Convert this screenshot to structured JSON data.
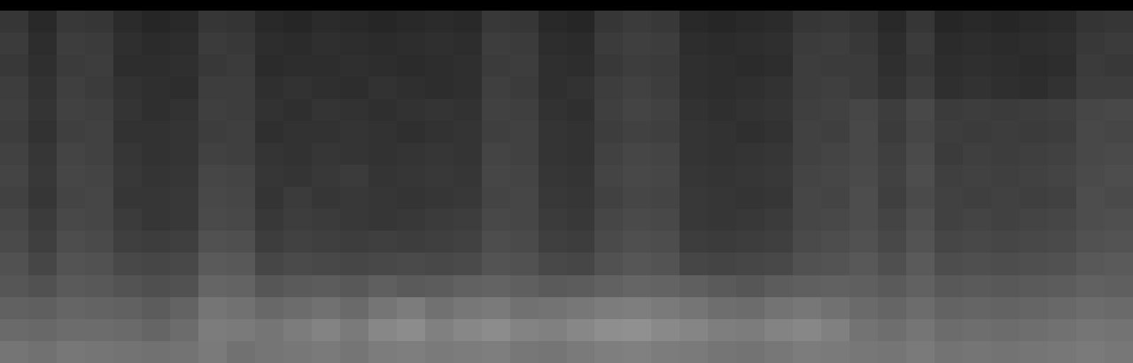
{
  "chart_data": {
    "type": "heatmap",
    "tick_labels": false,
    "cells": [
      [
        24,
        18,
        25,
        24,
        19,
        17,
        18,
        24,
        23,
        18,
        17,
        19,
        18,
        17,
        18,
        19,
        18,
        25,
        24,
        18,
        17,
        24,
        26,
        25,
        18,
        17,
        18,
        19,
        24,
        25,
        23,
        18,
        24,
        17,
        18,
        17,
        18,
        19,
        23,
        24
      ],
      [
        26,
        20,
        27,
        26,
        21,
        19,
        20,
        26,
        25,
        20,
        19,
        21,
        20,
        19,
        20,
        21,
        20,
        27,
        26,
        20,
        19,
        26,
        28,
        27,
        20,
        19,
        20,
        21,
        26,
        27,
        25,
        20,
        26,
        19,
        20,
        19,
        20,
        21,
        25,
        26
      ],
      [
        25,
        21,
        26,
        27,
        20,
        20,
        21,
        25,
        26,
        19,
        20,
        20,
        21,
        20,
        19,
        20,
        21,
        26,
        27,
        21,
        20,
        25,
        27,
        26,
        21,
        20,
        19,
        20,
        27,
        26,
        26,
        21,
        25,
        20,
        21,
        20,
        19,
        20,
        26,
        25
      ],
      [
        27,
        22,
        28,
        26,
        22,
        21,
        20,
        27,
        27,
        21,
        22,
        21,
        20,
        22,
        21,
        20,
        21,
        28,
        26,
        21,
        22,
        27,
        29,
        27,
        21,
        20,
        21,
        22,
        27,
        28,
        26,
        22,
        27,
        21,
        22,
        21,
        20,
        22,
        27,
        27
      ],
      [
        28,
        23,
        29,
        28,
        23,
        21,
        22,
        28,
        27,
        22,
        21,
        23,
        22,
        21,
        22,
        23,
        22,
        29,
        28,
        22,
        21,
        28,
        30,
        29,
        22,
        21,
        22,
        23,
        28,
        29,
        31,
        27,
        32,
        26,
        27,
        26,
        27,
        28,
        31,
        32
      ],
      [
        27,
        22,
        28,
        29,
        22,
        22,
        23,
        27,
        28,
        21,
        22,
        22,
        23,
        22,
        21,
        22,
        23,
        28,
        29,
        23,
        22,
        27,
        29,
        28,
        23,
        22,
        21,
        22,
        29,
        28,
        32,
        26,
        31,
        27,
        26,
        27,
        26,
        27,
        32,
        31
      ],
      [
        29,
        24,
        30,
        29,
        24,
        22,
        23,
        29,
        28,
        23,
        22,
        24,
        23,
        22,
        23,
        24,
        23,
        30,
        29,
        23,
        22,
        29,
        31,
        30,
        23,
        22,
        23,
        24,
        29,
        30,
        32,
        28,
        33,
        26,
        28,
        27,
        28,
        29,
        32,
        33
      ],
      [
        30,
        25,
        31,
        30,
        25,
        23,
        24,
        31,
        30,
        24,
        23,
        25,
        26,
        23,
        24,
        25,
        24,
        31,
        30,
        24,
        23,
        30,
        32,
        31,
        24,
        23,
        24,
        25,
        30,
        31,
        33,
        29,
        34,
        28,
        29,
        28,
        29,
        30,
        33,
        34
      ],
      [
        29,
        24,
        30,
        31,
        24,
        24,
        25,
        32,
        31,
        23,
        26,
        24,
        25,
        24,
        23,
        24,
        25,
        30,
        31,
        25,
        24,
        29,
        31,
        30,
        25,
        24,
        23,
        24,
        31,
        30,
        34,
        28,
        33,
        29,
        28,
        29,
        28,
        29,
        34,
        33
      ],
      [
        31,
        26,
        32,
        31,
        26,
        24,
        25,
        33,
        32,
        25,
        27,
        26,
        25,
        24,
        25,
        26,
        27,
        32,
        31,
        26,
        25,
        31,
        33,
        32,
        25,
        24,
        25,
        26,
        31,
        32,
        34,
        30,
        35,
        29,
        30,
        29,
        30,
        31,
        34,
        35
      ],
      [
        33,
        28,
        34,
        33,
        28,
        27,
        28,
        36,
        35,
        27,
        29,
        28,
        27,
        28,
        27,
        28,
        29,
        34,
        33,
        28,
        27,
        33,
        35,
        34,
        27,
        26,
        27,
        28,
        33,
        34,
        36,
        32,
        37,
        31,
        32,
        31,
        32,
        33,
        36,
        37
      ],
      [
        36,
        31,
        37,
        36,
        32,
        31,
        32,
        40,
        39,
        31,
        33,
        32,
        31,
        32,
        33,
        32,
        33,
        37,
        36,
        32,
        31,
        36,
        38,
        37,
        31,
        30,
        31,
        32,
        36,
        37,
        39,
        35,
        40,
        34,
        35,
        34,
        35,
        36,
        39,
        40
      ],
      [
        38,
        36,
        40,
        39,
        37,
        35,
        36,
        45,
        44,
        38,
        40,
        41,
        39,
        42,
        40,
        41,
        43,
        44,
        42,
        40,
        41,
        43,
        45,
        44,
        42,
        40,
        38,
        41,
        42,
        43,
        42,
        40,
        43,
        39,
        40,
        39,
        40,
        41,
        43,
        42
      ],
      [
        43,
        42,
        45,
        44,
        43,
        41,
        44,
        52,
        50,
        46,
        48,
        50,
        47,
        52,
        55,
        50,
        53,
        54,
        50,
        51,
        53,
        55,
        56,
        54,
        52,
        49,
        48,
        51,
        53,
        50,
        47,
        45,
        48,
        44,
        45,
        44,
        45,
        46,
        48,
        47
      ],
      [
        47,
        46,
        48,
        48,
        47,
        45,
        48,
        55,
        54,
        52,
        55,
        58,
        54,
        60,
        62,
        57,
        60,
        62,
        58,
        57,
        60,
        63,
        64,
        61,
        59,
        56,
        55,
        58,
        60,
        57,
        51,
        49,
        52,
        48,
        49,
        48,
        49,
        50,
        52,
        51
      ],
      [
        52,
        50,
        53,
        52,
        51,
        50,
        51,
        54,
        50,
        52,
        53,
        54,
        52,
        55,
        56,
        54,
        55,
        56,
        53,
        52,
        54,
        56,
        57,
        55,
        54,
        52,
        51,
        53,
        55,
        54,
        53,
        52,
        54,
        51,
        52,
        51,
        52,
        53,
        54,
        53
      ]
    ]
  }
}
